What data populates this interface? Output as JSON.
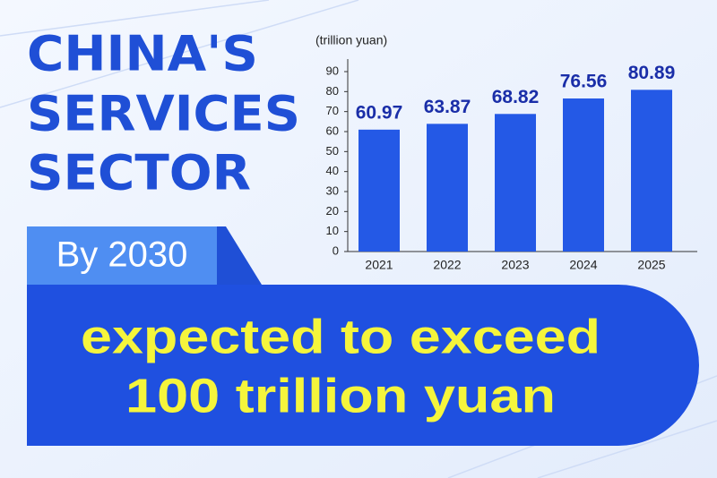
{
  "headline": [
    "CHINA'S",
    "SERVICES",
    "SECTOR"
  ],
  "badge": "By 2030",
  "banner": [
    "expected to exceed",
    "100 trillion yuan"
  ],
  "chart_data": {
    "type": "bar",
    "y_label": "(trillion yuan)",
    "categories": [
      "2021",
      "2022",
      "2023",
      "2024",
      "2025"
    ],
    "values": [
      60.97,
      63.87,
      68.82,
      76.56,
      80.89
    ],
    "color": "#2459e6",
    "ylim": [
      0,
      90
    ],
    "yticks": [
      0,
      10,
      20,
      30,
      40,
      50,
      60,
      70,
      80,
      90
    ],
    "grid": false
  }
}
